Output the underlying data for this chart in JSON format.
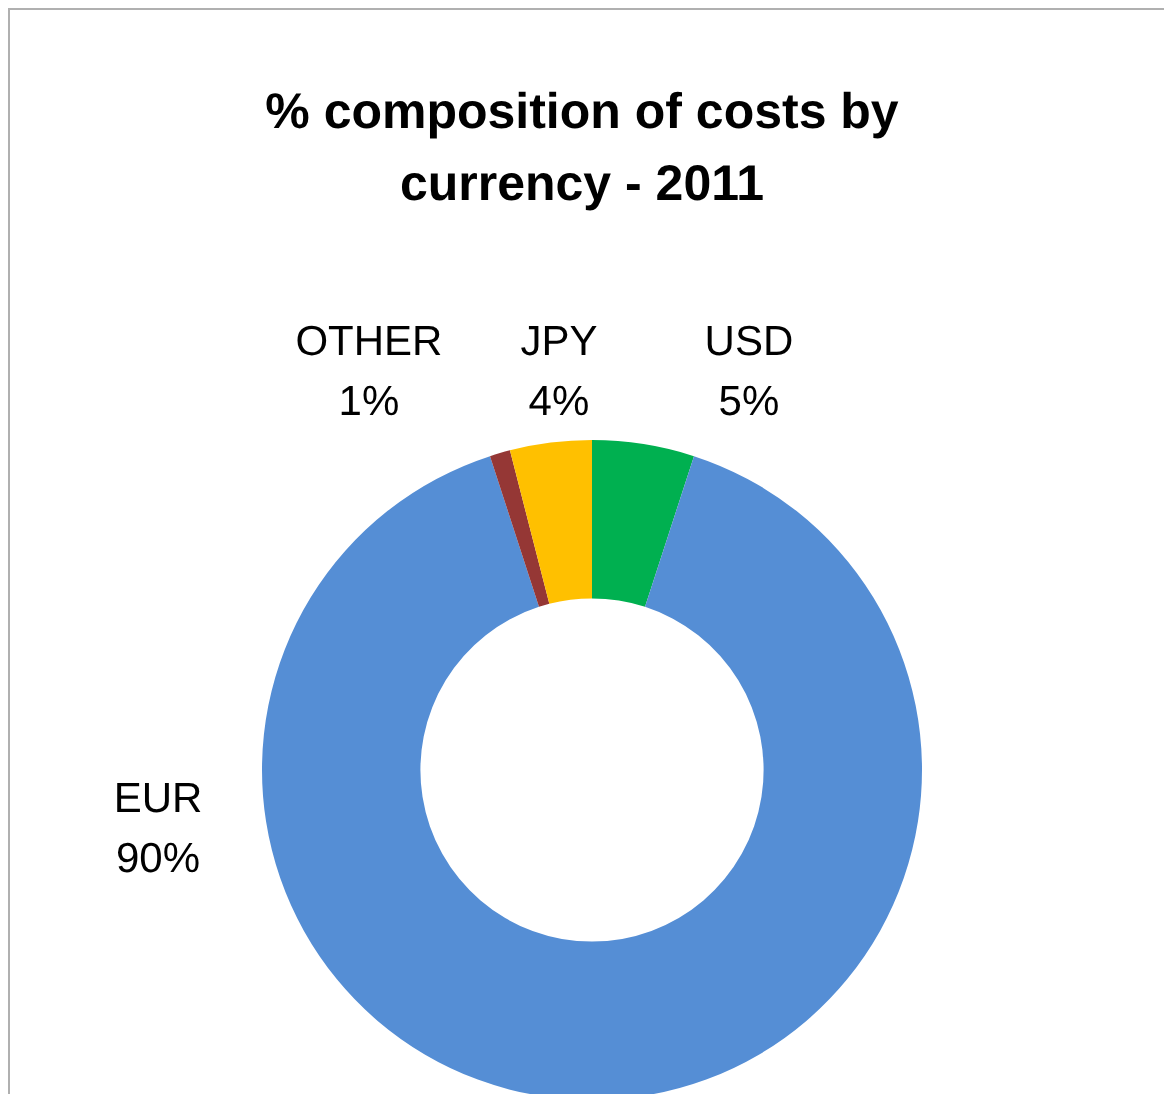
{
  "chart_data": {
    "type": "donut",
    "title": "% composition of costs by currency - 2011",
    "categories": [
      "USD",
      "EUR",
      "OTHER",
      "JPY"
    ],
    "values": [
      5,
      90,
      1,
      4
    ],
    "colors": [
      "#00b050",
      "#558ed5",
      "#953735",
      "#ffc000"
    ],
    "value_labels": [
      "5%",
      "90%",
      "1%",
      "4%"
    ],
    "legend": false
  }
}
